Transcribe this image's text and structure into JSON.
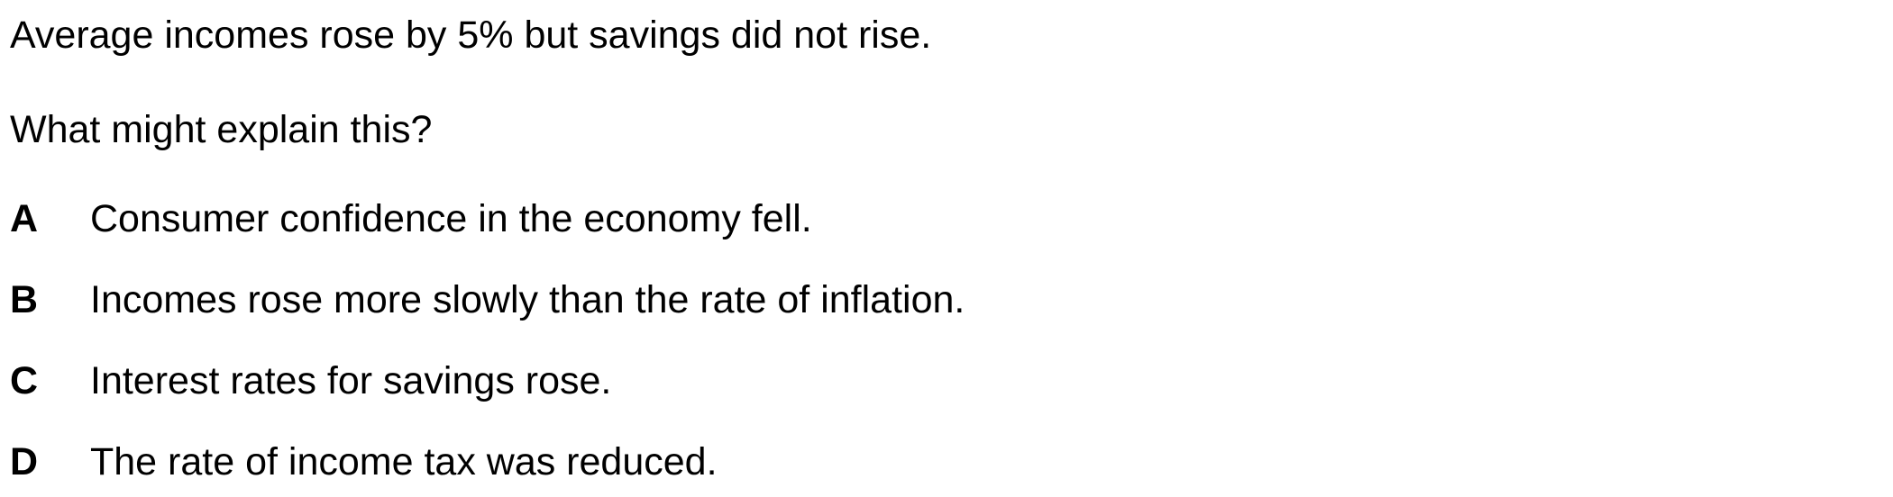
{
  "question": {
    "stem": "Average incomes rose by 5% but savings did not rise.",
    "prompt": "What might explain this?",
    "options": [
      {
        "letter": "A",
        "text": "Consumer confidence in the economy fell."
      },
      {
        "letter": "B",
        "text": "Incomes rose more slowly than the rate of inflation."
      },
      {
        "letter": "C",
        "text": "Interest rates for savings rose."
      },
      {
        "letter": "D",
        "text": "The rate of income tax was reduced."
      }
    ]
  }
}
